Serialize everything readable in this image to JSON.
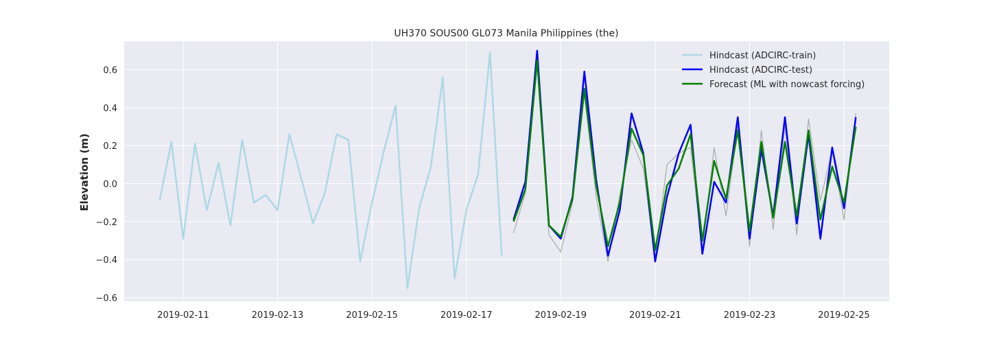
{
  "chart_data": {
    "type": "line",
    "title": "UH370 SOUS00 GL073 Manila Philippines (the)",
    "xlabel": "",
    "ylabel": "Elevation (m)",
    "x_axis": {
      "type": "date",
      "range": [
        "2019-02-09T18:00",
        "2019-02-25T23:00"
      ],
      "tick_labels": [
        "2019-02-11",
        "2019-02-13",
        "2019-02-15",
        "2019-02-17",
        "2019-02-19",
        "2019-02-21",
        "2019-02-23",
        "2019-02-25"
      ]
    },
    "y_axis": {
      "range": [
        -0.62,
        0.75
      ],
      "ticks": [
        -0.6,
        -0.4,
        -0.2,
        0.0,
        0.2,
        0.4,
        0.6
      ],
      "tick_labels": [
        "−0.6",
        "−0.4",
        "−0.2",
        "0.0",
        "0.2",
        "0.4",
        "0.6"
      ]
    },
    "grid": true,
    "legend_position": "top-right",
    "background_color": "#eaeaf2",
    "series": [
      {
        "name": "Hindcast (ADCIRC-train)",
        "color": "#add8e6",
        "in_legend": true,
        "points": [
          [
            "2019-02-10T12:00",
            -0.09
          ],
          [
            "2019-02-10T18:00",
            0.22
          ],
          [
            "2019-02-11T00:00",
            -0.29
          ],
          [
            "2019-02-11T06:00",
            0.21
          ],
          [
            "2019-02-11T12:00",
            -0.14
          ],
          [
            "2019-02-11T18:00",
            0.11
          ],
          [
            "2019-02-12T00:00",
            -0.22
          ],
          [
            "2019-02-12T06:00",
            0.23
          ],
          [
            "2019-02-12T12:00",
            -0.1
          ],
          [
            "2019-02-12T18:00",
            -0.06
          ],
          [
            "2019-02-13T00:00",
            -0.14
          ],
          [
            "2019-02-13T06:00",
            0.26
          ],
          [
            "2019-02-13T12:00",
            0.03
          ],
          [
            "2019-02-13T18:00",
            -0.21
          ],
          [
            "2019-02-14T00:00",
            -0.05
          ],
          [
            "2019-02-14T06:00",
            0.26
          ],
          [
            "2019-02-14T12:00",
            0.23
          ],
          [
            "2019-02-14T18:00",
            -0.41
          ],
          [
            "2019-02-15T00:00",
            -0.1
          ],
          [
            "2019-02-15T06:00",
            0.17
          ],
          [
            "2019-02-15T12:00",
            0.41
          ],
          [
            "2019-02-15T18:00",
            -0.55
          ],
          [
            "2019-02-16T00:00",
            -0.13
          ],
          [
            "2019-02-16T06:00",
            0.09
          ],
          [
            "2019-02-16T12:00",
            0.56
          ],
          [
            "2019-02-16T18:00",
            -0.5
          ],
          [
            "2019-02-17T00:00",
            -0.14
          ],
          [
            "2019-02-17T06:00",
            0.05
          ],
          [
            "2019-02-17T12:00",
            0.69
          ],
          [
            "2019-02-17T18:00",
            -0.38
          ]
        ]
      },
      {
        "name": "",
        "color": "#aaaaaa",
        "in_legend": false,
        "points": [
          [
            "2019-02-18T00:00",
            -0.26
          ],
          [
            "2019-02-18T06:00",
            -0.05
          ],
          [
            "2019-02-18T12:00",
            0.63
          ],
          [
            "2019-02-18T18:00",
            -0.27
          ],
          [
            "2019-02-19T00:00",
            -0.36
          ],
          [
            "2019-02-19T06:00",
            -0.1
          ],
          [
            "2019-02-19T12:00",
            0.47
          ],
          [
            "2019-02-19T18:00",
            -0.07
          ],
          [
            "2019-02-20T00:00",
            -0.41
          ],
          [
            "2019-02-20T06:00",
            -0.06
          ],
          [
            "2019-02-20T12:00",
            0.23
          ],
          [
            "2019-02-20T18:00",
            0.08
          ],
          [
            "2019-02-21T00:00",
            -0.39
          ],
          [
            "2019-02-21T06:00",
            0.1
          ],
          [
            "2019-02-21T12:00",
            0.16
          ],
          [
            "2019-02-21T18:00",
            0.19
          ],
          [
            "2019-02-22T00:00",
            -0.35
          ],
          [
            "2019-02-22T06:00",
            0.19
          ],
          [
            "2019-02-22T12:00",
            -0.17
          ],
          [
            "2019-02-22T18:00",
            0.3
          ],
          [
            "2019-02-23T00:00",
            -0.33
          ],
          [
            "2019-02-23T06:00",
            0.28
          ],
          [
            "2019-02-23T12:00",
            -0.24
          ],
          [
            "2019-02-23T18:00",
            0.3
          ],
          [
            "2019-02-24T00:00",
            -0.27
          ],
          [
            "2019-02-24T06:00",
            0.34
          ],
          [
            "2019-02-24T12:00",
            -0.09
          ],
          [
            "2019-02-24T18:00",
            0.18
          ],
          [
            "2019-02-25T00:00",
            -0.19
          ],
          [
            "2019-02-25T06:00",
            0.37
          ]
        ]
      },
      {
        "name": "Hindcast (ADCIRC-test)",
        "color": "#0000ff",
        "in_legend": true,
        "points": [
          [
            "2019-02-18T00:00",
            -0.19
          ],
          [
            "2019-02-18T06:00",
            0.01
          ],
          [
            "2019-02-18T12:00",
            0.7
          ],
          [
            "2019-02-18T18:00",
            -0.22
          ],
          [
            "2019-02-19T00:00",
            -0.29
          ],
          [
            "2019-02-19T06:00",
            -0.07
          ],
          [
            "2019-02-19T12:00",
            0.59
          ],
          [
            "2019-02-19T18:00",
            0.02
          ],
          [
            "2019-02-20T00:00",
            -0.38
          ],
          [
            "2019-02-20T06:00",
            -0.14
          ],
          [
            "2019-02-20T12:00",
            0.37
          ],
          [
            "2019-02-20T18:00",
            0.16
          ],
          [
            "2019-02-21T00:00",
            -0.41
          ],
          [
            "2019-02-21T06:00",
            -0.07
          ],
          [
            "2019-02-21T12:00",
            0.16
          ],
          [
            "2019-02-21T18:00",
            0.31
          ],
          [
            "2019-02-22T00:00",
            -0.37
          ],
          [
            "2019-02-22T06:00",
            0.01
          ],
          [
            "2019-02-22T12:00",
            -0.1
          ],
          [
            "2019-02-22T18:00",
            0.35
          ],
          [
            "2019-02-23T00:00",
            -0.29
          ],
          [
            "2019-02-23T06:00",
            0.18
          ],
          [
            "2019-02-23T12:00",
            -0.17
          ],
          [
            "2019-02-23T18:00",
            0.35
          ],
          [
            "2019-02-24T00:00",
            -0.21
          ],
          [
            "2019-02-24T06:00",
            0.26
          ],
          [
            "2019-02-24T12:00",
            -0.29
          ],
          [
            "2019-02-24T18:00",
            0.19
          ],
          [
            "2019-02-25T00:00",
            -0.13
          ],
          [
            "2019-02-25T06:00",
            0.35
          ]
        ]
      },
      {
        "name": "Forecast (ML with nowcast forcing)",
        "color": "#008000",
        "in_legend": true,
        "points": [
          [
            "2019-02-18T00:00",
            -0.2
          ],
          [
            "2019-02-18T06:00",
            -0.03
          ],
          [
            "2019-02-18T12:00",
            0.65
          ],
          [
            "2019-02-18T18:00",
            -0.22
          ],
          [
            "2019-02-19T00:00",
            -0.28
          ],
          [
            "2019-02-19T06:00",
            -0.08
          ],
          [
            "2019-02-19T12:00",
            0.5
          ],
          [
            "2019-02-19T18:00",
            -0.01
          ],
          [
            "2019-02-20T00:00",
            -0.33
          ],
          [
            "2019-02-20T06:00",
            -0.1
          ],
          [
            "2019-02-20T12:00",
            0.29
          ],
          [
            "2019-02-20T18:00",
            0.15
          ],
          [
            "2019-02-21T00:00",
            -0.35
          ],
          [
            "2019-02-21T06:00",
            -0.01
          ],
          [
            "2019-02-21T12:00",
            0.08
          ],
          [
            "2019-02-21T18:00",
            0.26
          ],
          [
            "2019-02-22T00:00",
            -0.3
          ],
          [
            "2019-02-22T06:00",
            0.12
          ],
          [
            "2019-02-22T12:00",
            -0.08
          ],
          [
            "2019-02-22T18:00",
            0.28
          ],
          [
            "2019-02-23T00:00",
            -0.25
          ],
          [
            "2019-02-23T06:00",
            0.22
          ],
          [
            "2019-02-23T12:00",
            -0.18
          ],
          [
            "2019-02-23T18:00",
            0.22
          ],
          [
            "2019-02-24T00:00",
            -0.17
          ],
          [
            "2019-02-24T06:00",
            0.28
          ],
          [
            "2019-02-24T12:00",
            -0.19
          ],
          [
            "2019-02-24T18:00",
            0.09
          ],
          [
            "2019-02-25T00:00",
            -0.1
          ],
          [
            "2019-02-25T06:00",
            0.3
          ]
        ]
      }
    ]
  }
}
